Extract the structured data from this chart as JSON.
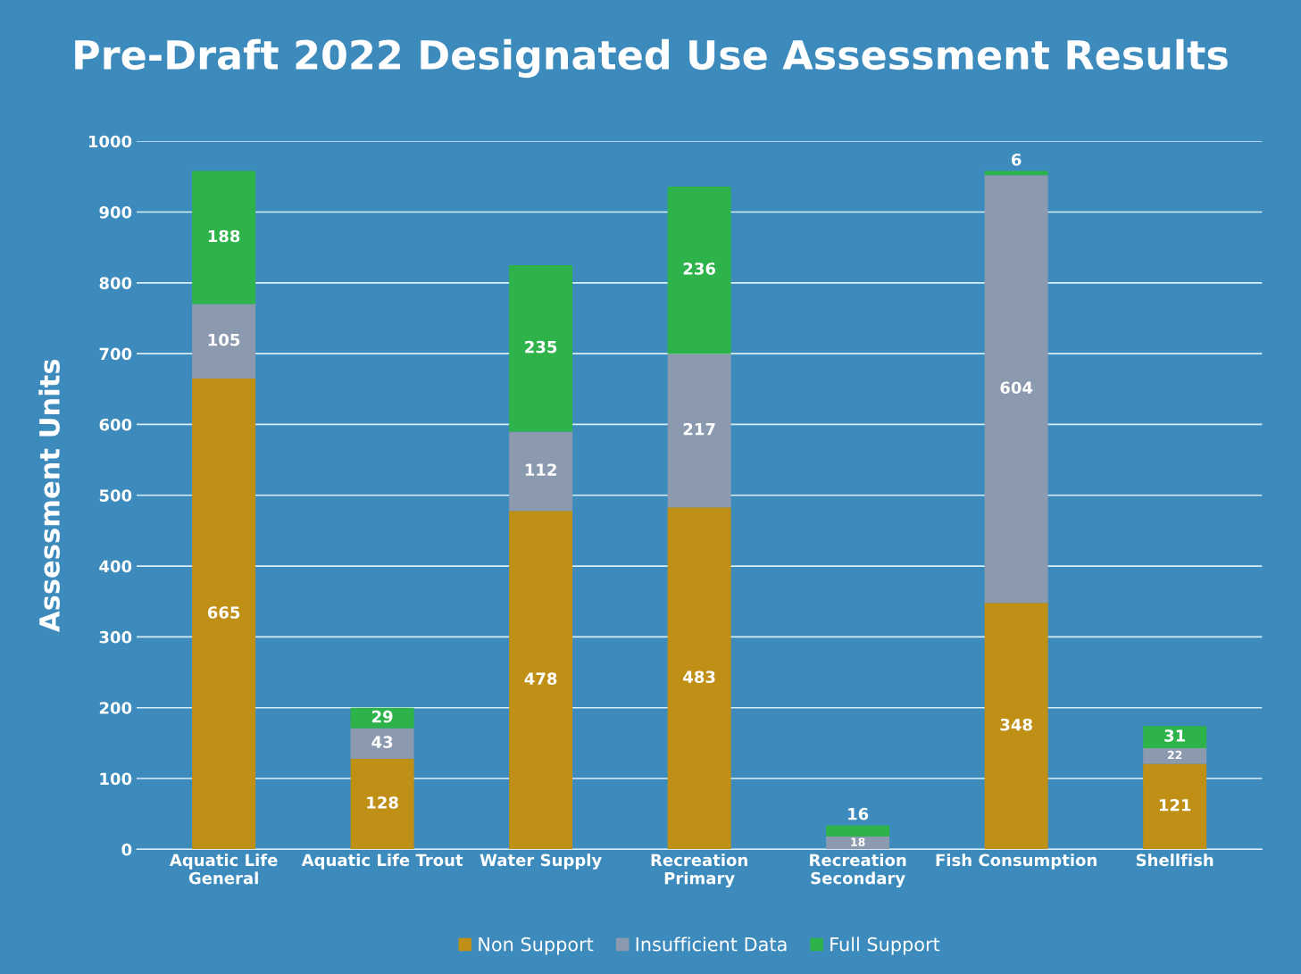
{
  "chart_data": {
    "type": "bar",
    "stacked": true,
    "title": "Pre-Draft 2022 Designated Use Assessment Results",
    "ylabel": "Assessment Units",
    "categories": [
      "Aquatic Life\nGeneral",
      "Aquatic Life Trout",
      "Water Supply",
      "Recreation\nPrimary",
      "Recreation\nSecondary",
      "Fish Consumption",
      "Shellfish"
    ],
    "series": [
      {
        "name": "Non Support",
        "color": "#bf8f16",
        "values": [
          665,
          128,
          478,
          483,
          0,
          348,
          121
        ],
        "value_labels": [
          "665",
          "128",
          "478",
          "483",
          null,
          "348",
          "121"
        ]
      },
      {
        "name": "Insufficient Data",
        "color": "#8c9ab0",
        "values": [
          105,
          43,
          112,
          217,
          18,
          604,
          22
        ],
        "value_labels": [
          "105",
          "43",
          "112",
          "217",
          "18",
          "604",
          "22"
        ]
      },
      {
        "name": "Full Support",
        "color": "#2db34a",
        "values": [
          188,
          29,
          235,
          236,
          16,
          6,
          31
        ],
        "value_labels": [
          "188",
          "29",
          "235",
          "236",
          "16",
          "6",
          "31"
        ]
      }
    ],
    "ylim": [
      0,
      1000
    ],
    "yticks": [
      0,
      100,
      200,
      300,
      400,
      500,
      600,
      700,
      800,
      900,
      1000
    ],
    "grid": "y",
    "legend": "bottom"
  }
}
